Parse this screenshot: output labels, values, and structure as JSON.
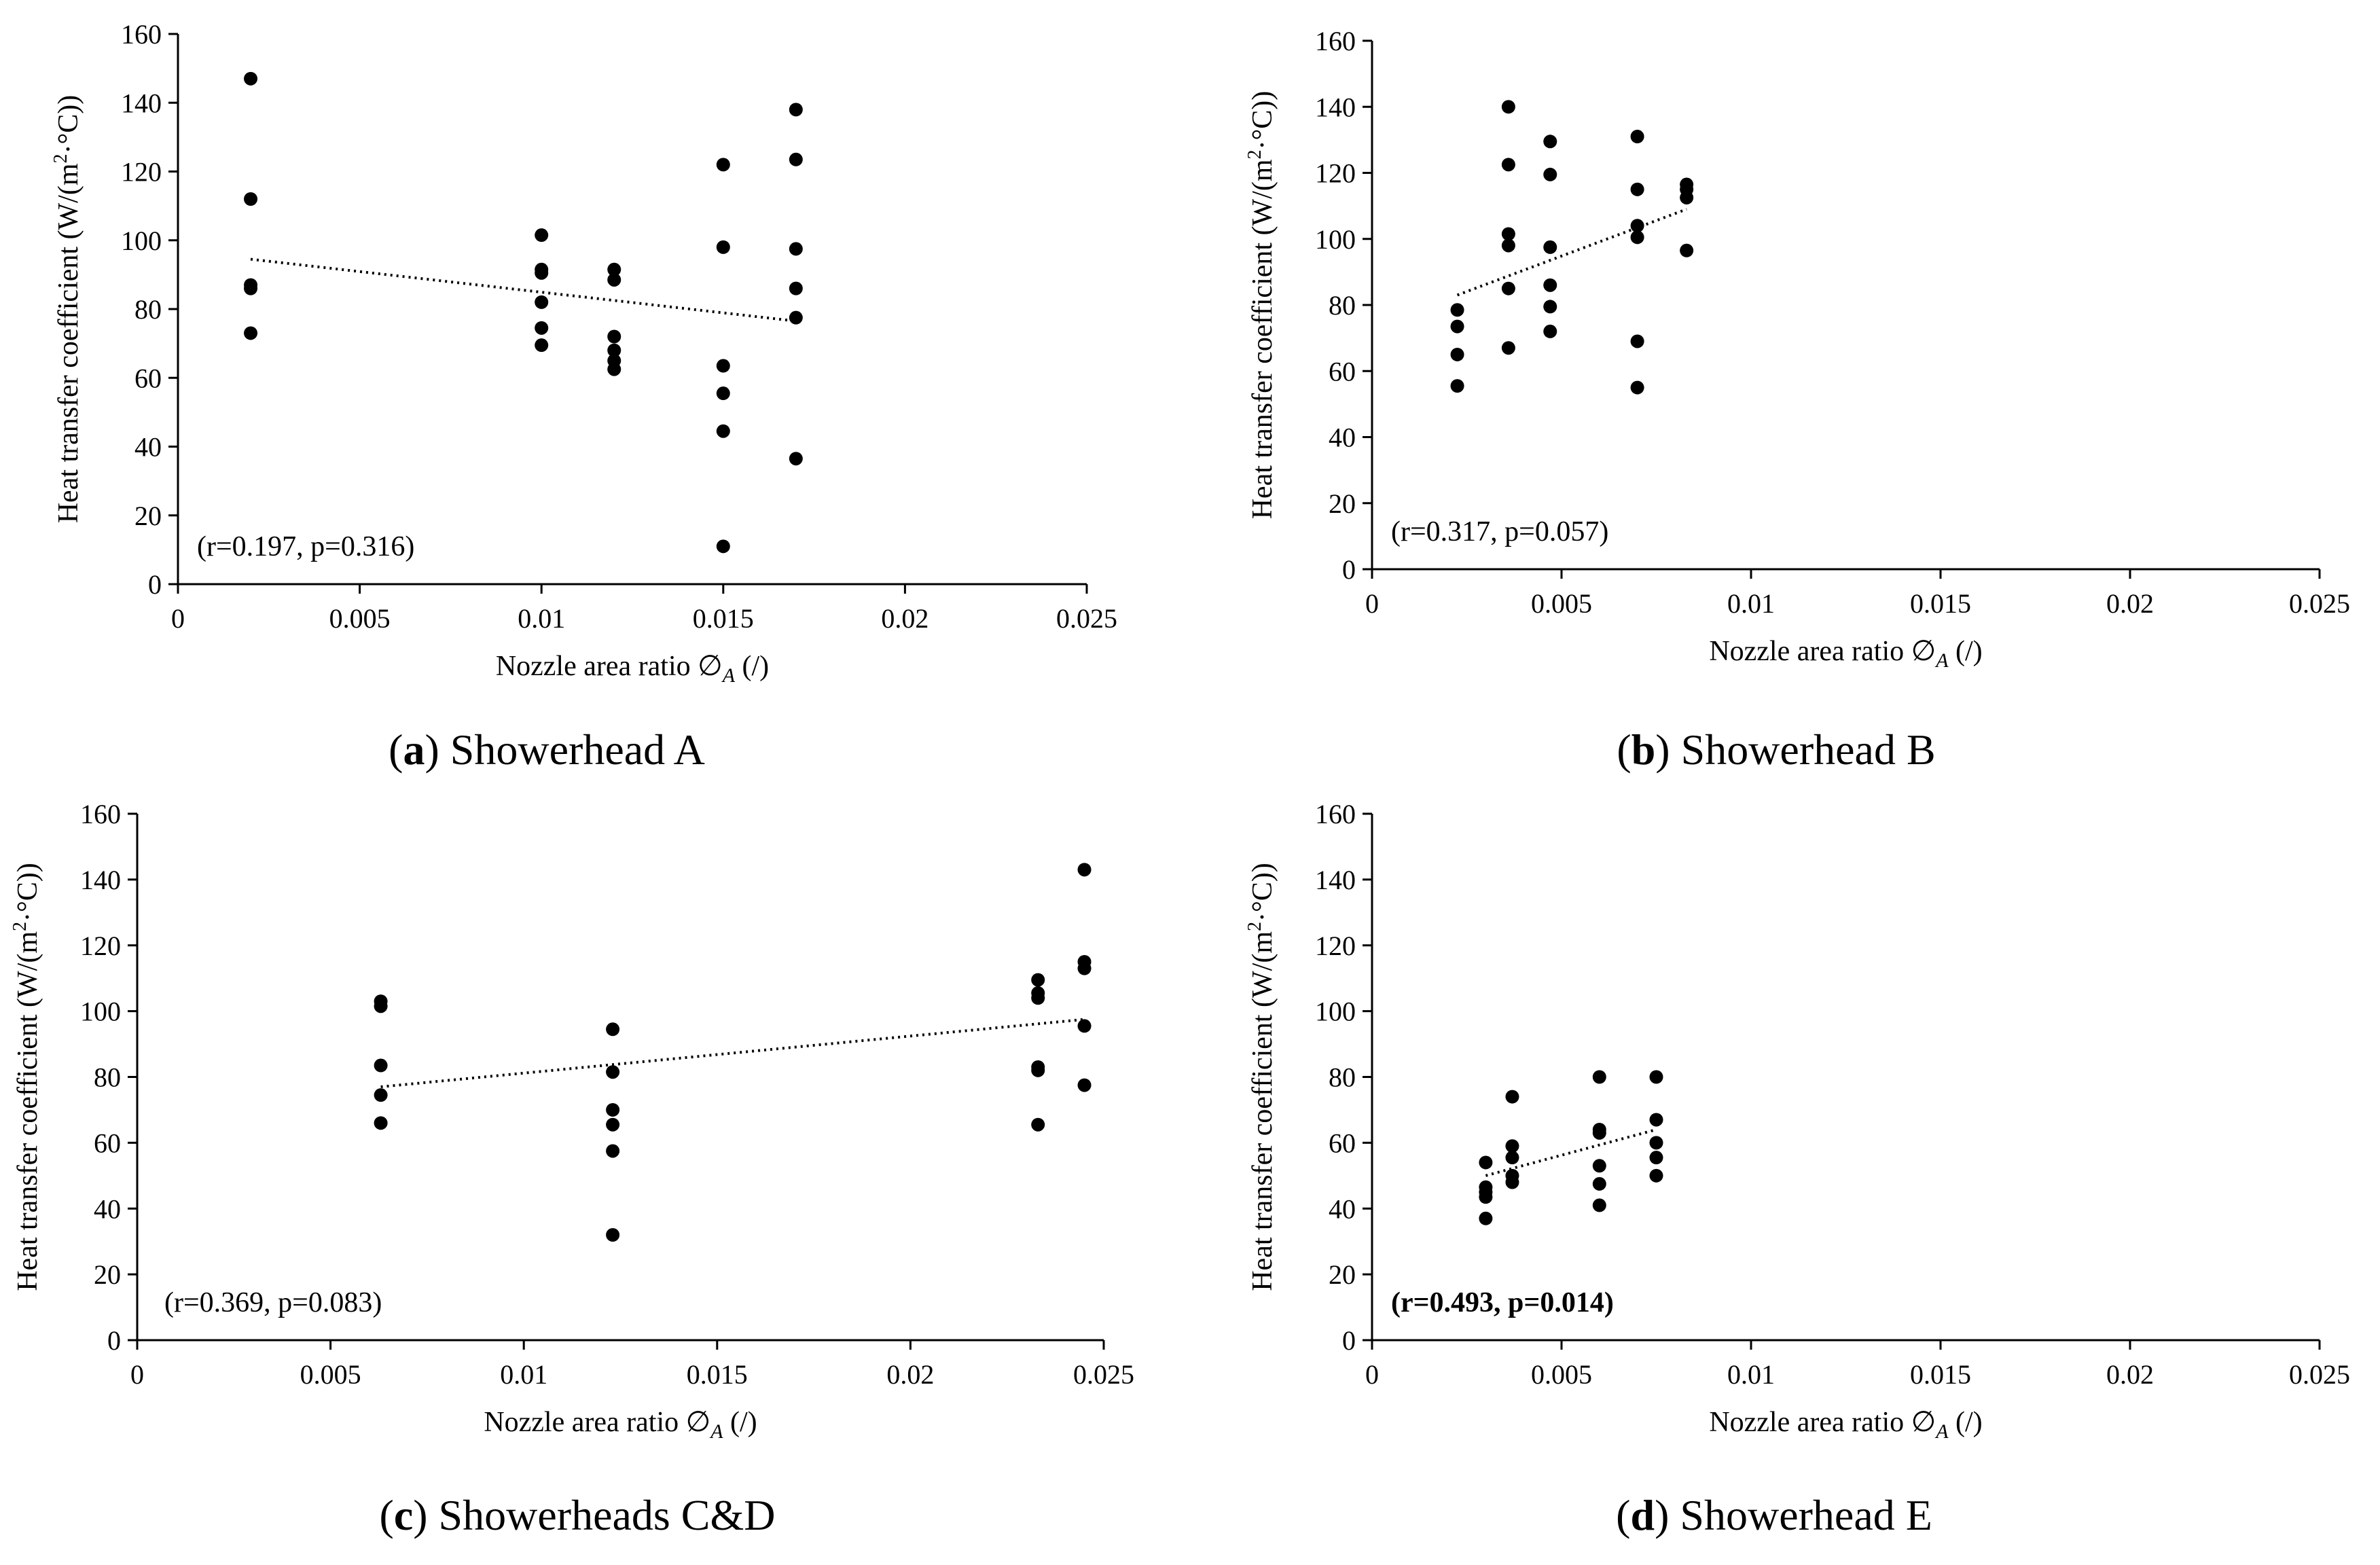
{
  "y_axis_title": {
    "main": "Heat transfer coefficient (W/(m",
    "sup": "2",
    "dot": "·",
    "unit": "°C))"
  },
  "x_axis_title": {
    "main": "Nozzle area ratio ∅",
    "sub": "A",
    "unit": " (/)"
  },
  "chart_data": [
    {
      "id": "a",
      "type": "scatter",
      "caption_letter": "a",
      "caption_text": " Showerhead A",
      "annotation": "(r=0.197, p=0.316)",
      "annotation_bold": false,
      "xlim": [
        0,
        0.025
      ],
      "ylim": [
        0,
        160
      ],
      "x_ticks": [
        0,
        0.005,
        0.01,
        0.015,
        0.02,
        0.025
      ],
      "x_tick_labels": [
        "0",
        "0.005",
        "0.01",
        "0.015",
        "0.02",
        "0.025"
      ],
      "y_ticks": [
        0,
        20,
        40,
        60,
        80,
        100,
        120,
        140,
        160
      ],
      "y_tick_labels": [
        "0",
        "20",
        "40",
        "60",
        "80",
        "100",
        "120",
        "140",
        "160"
      ],
      "points": [
        [
          0.002,
          147
        ],
        [
          0.002,
          112
        ],
        [
          0.002,
          87
        ],
        [
          0.002,
          86
        ],
        [
          0.002,
          73
        ],
        [
          0.01,
          101.5
        ],
        [
          0.01,
          91.5
        ],
        [
          0.01,
          90.5
        ],
        [
          0.01,
          82
        ],
        [
          0.01,
          74.5
        ],
        [
          0.01,
          69.5
        ],
        [
          0.012,
          91.5
        ],
        [
          0.012,
          88.5
        ],
        [
          0.012,
          72
        ],
        [
          0.012,
          68
        ],
        [
          0.012,
          65
        ],
        [
          0.012,
          62.5
        ],
        [
          0.015,
          122
        ],
        [
          0.015,
          98
        ],
        [
          0.015,
          63.5
        ],
        [
          0.015,
          55.5
        ],
        [
          0.015,
          44.5
        ],
        [
          0.015,
          11
        ],
        [
          0.017,
          138
        ],
        [
          0.017,
          123.5
        ],
        [
          0.017,
          97.5
        ],
        [
          0.017,
          86
        ],
        [
          0.017,
          77.5
        ],
        [
          0.017,
          36.5
        ]
      ],
      "trendline": [
        [
          0.002,
          94.5
        ],
        [
          0.017,
          76.5
        ]
      ]
    },
    {
      "id": "b",
      "type": "scatter",
      "caption_letter": "b",
      "caption_text": " Showerhead B",
      "annotation": "(r=0.317, p=0.057)",
      "annotation_bold": false,
      "xlim": [
        0,
        0.025
      ],
      "ylim": [
        0,
        160
      ],
      "x_ticks": [
        0,
        0.005,
        0.01,
        0.015,
        0.02,
        0.025
      ],
      "x_tick_labels": [
        "0",
        "0.005",
        "0.01",
        "0.015",
        "0.02",
        "0.025"
      ],
      "y_ticks": [
        0,
        20,
        40,
        60,
        80,
        100,
        120,
        140,
        160
      ],
      "y_tick_labels": [
        "0",
        "20",
        "40",
        "60",
        "80",
        "100",
        "120",
        "140",
        "160"
      ],
      "points": [
        [
          0.00225,
          78.5
        ],
        [
          0.00225,
          73.5
        ],
        [
          0.00225,
          65
        ],
        [
          0.00225,
          55.5
        ],
        [
          0.0036,
          140
        ],
        [
          0.0036,
          122.5
        ],
        [
          0.0036,
          101.5
        ],
        [
          0.0036,
          98
        ],
        [
          0.0036,
          85
        ],
        [
          0.0036,
          67
        ],
        [
          0.0047,
          129.5
        ],
        [
          0.0047,
          119.5
        ],
        [
          0.0047,
          97.5
        ],
        [
          0.0047,
          86
        ],
        [
          0.0047,
          79.5
        ],
        [
          0.0047,
          72
        ],
        [
          0.007,
          131
        ],
        [
          0.007,
          115
        ],
        [
          0.007,
          104
        ],
        [
          0.007,
          100.5
        ],
        [
          0.007,
          69
        ],
        [
          0.007,
          55
        ],
        [
          0.0083,
          116.5
        ],
        [
          0.0083,
          115
        ],
        [
          0.0083,
          112.5
        ],
        [
          0.0083,
          96.5
        ]
      ],
      "trendline": [
        [
          0.00225,
          83
        ],
        [
          0.0083,
          109
        ]
      ]
    },
    {
      "id": "c",
      "type": "scatter",
      "caption_letter": "c",
      "caption_text": " Showerheads C&D",
      "annotation": "(r=0.369, p=0.083)",
      "annotation_bold": false,
      "xlim": [
        0,
        0.025
      ],
      "ylim": [
        0,
        160
      ],
      "x_ticks": [
        0,
        0.005,
        0.01,
        0.015,
        0.02,
        0.025
      ],
      "x_tick_labels": [
        "0",
        "0.005",
        "0.01",
        "0.015",
        "0.02",
        "0.025"
      ],
      "y_ticks": [
        0,
        20,
        40,
        60,
        80,
        100,
        120,
        140,
        160
      ],
      "y_tick_labels": [
        "0",
        "20",
        "40",
        "60",
        "80",
        "100",
        "120",
        "140",
        "160"
      ],
      "points": [
        [
          0.0063,
          103
        ],
        [
          0.0063,
          101.5
        ],
        [
          0.0063,
          83.5
        ],
        [
          0.0063,
          74.5
        ],
        [
          0.0063,
          66
        ],
        [
          0.0123,
          94.5
        ],
        [
          0.0123,
          81.5
        ],
        [
          0.0123,
          70
        ],
        [
          0.0123,
          65.5
        ],
        [
          0.0123,
          57.5
        ],
        [
          0.0123,
          32
        ],
        [
          0.0233,
          109.5
        ],
        [
          0.0233,
          105.5
        ],
        [
          0.0233,
          104
        ],
        [
          0.0233,
          83
        ],
        [
          0.0233,
          82
        ],
        [
          0.0233,
          65.5
        ],
        [
          0.0245,
          143
        ],
        [
          0.0245,
          115
        ],
        [
          0.0245,
          113
        ],
        [
          0.0245,
          95.5
        ],
        [
          0.0245,
          77.5
        ]
      ],
      "trendline": [
        [
          0.0063,
          77
        ],
        [
          0.0245,
          97.5
        ]
      ]
    },
    {
      "id": "d",
      "type": "scatter",
      "caption_letter": "d",
      "caption_text": " Showerhead E",
      "annotation": "(r=0.493, p=0.014)",
      "annotation_bold": true,
      "xlim": [
        0,
        0.025
      ],
      "ylim": [
        0,
        160
      ],
      "x_ticks": [
        0,
        0.005,
        0.01,
        0.015,
        0.02,
        0.025
      ],
      "x_tick_labels": [
        "0",
        "0.005",
        "0.01",
        "0.015",
        "0.02",
        "0.025"
      ],
      "y_ticks": [
        0,
        20,
        40,
        60,
        80,
        100,
        120,
        140,
        160
      ],
      "y_tick_labels": [
        "0",
        "20",
        "40",
        "60",
        "80",
        "100",
        "120",
        "140",
        "160"
      ],
      "points": [
        [
          0.003,
          54
        ],
        [
          0.003,
          46.5
        ],
        [
          0.003,
          45
        ],
        [
          0.003,
          43.5
        ],
        [
          0.003,
          37
        ],
        [
          0.0037,
          74
        ],
        [
          0.0037,
          59
        ],
        [
          0.0037,
          55.5
        ],
        [
          0.0037,
          50
        ],
        [
          0.0037,
          48
        ],
        [
          0.006,
          80
        ],
        [
          0.006,
          64
        ],
        [
          0.006,
          63
        ],
        [
          0.006,
          53
        ],
        [
          0.006,
          47.5
        ],
        [
          0.006,
          41
        ],
        [
          0.0075,
          80
        ],
        [
          0.0075,
          67
        ],
        [
          0.0075,
          60
        ],
        [
          0.0075,
          55.5
        ],
        [
          0.0075,
          50
        ]
      ],
      "trendline": [
        [
          0.003,
          50
        ],
        [
          0.0075,
          64
        ]
      ]
    }
  ]
}
